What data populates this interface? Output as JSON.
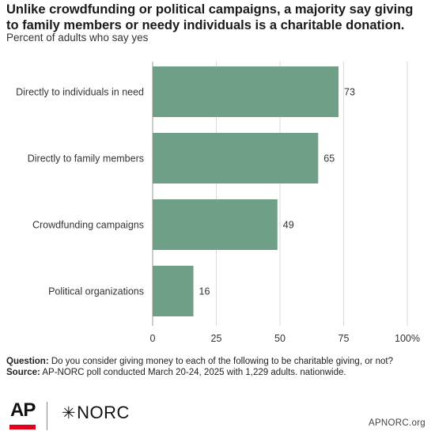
{
  "header": {
    "title": "Unlike crowdfunding or political campaigns, a majority say giving to family members or needy individuals is a charitable donation.",
    "subtitle": "Percent of adults who say yes"
  },
  "chart_data": {
    "type": "bar",
    "orientation": "horizontal",
    "title": "Unlike crowdfunding or political campaigns, a majority say giving to family members or needy individuals is a charitable donation.",
    "subtitle": "Percent of adults who say yes",
    "categories": [
      "Directly to individuals in need",
      "Directly to family members",
      "Crowdfunding campaigns",
      "Political organizations"
    ],
    "values": [
      73,
      65,
      49,
      16
    ],
    "value_labels": [
      "73",
      "65",
      "49",
      "16"
    ],
    "xlim": [
      0,
      100
    ],
    "ticks": [
      0,
      25,
      50,
      75,
      100
    ],
    "tick_labels": [
      "0",
      "25",
      "50",
      "75",
      "100%"
    ],
    "grid": true,
    "bar_color": "#6f9f86",
    "grid_color": "#d9d9d9"
  },
  "footer": {
    "question_label": "Question:",
    "question_text": " Do you consider giving money to each of the following to be charitable giving, or not?",
    "source_label": "Source:",
    "source_text": " AP-NORC poll conducted March 20-24, 2025 with 1,229 adults. nationwide.",
    "ap_logo": "AP",
    "ap_color": "#e2001a",
    "norc_logo": "NORC",
    "norc_icon": "asterisk-icon",
    "website": "APNORC.org"
  }
}
